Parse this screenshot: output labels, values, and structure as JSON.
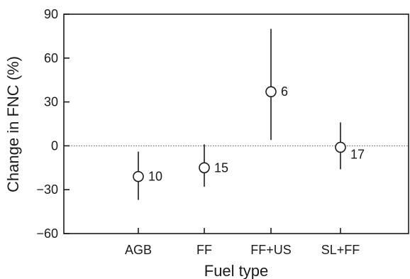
{
  "chart_data": {
    "type": "scatter",
    "title": "",
    "xlabel": "Fuel type",
    "ylabel": "Change in FNC (%)",
    "ylim": [
      -60,
      90
    ],
    "yticks": [
      -60,
      -30,
      0,
      30,
      60,
      90
    ],
    "ytick_labels": [
      "−60",
      "−30",
      "0",
      "30",
      "60",
      "90"
    ],
    "categories": [
      "AGB",
      "FF",
      "FF+US",
      "SL+FF"
    ],
    "values": [
      -21,
      -15,
      37,
      -1
    ],
    "ci_low": [
      -37,
      -28,
      4,
      -16
    ],
    "ci_high": [
      -4,
      1,
      80,
      16
    ],
    "n": [
      "10",
      "15",
      "6",
      "17"
    ],
    "reference_line": 0,
    "grid": false
  }
}
